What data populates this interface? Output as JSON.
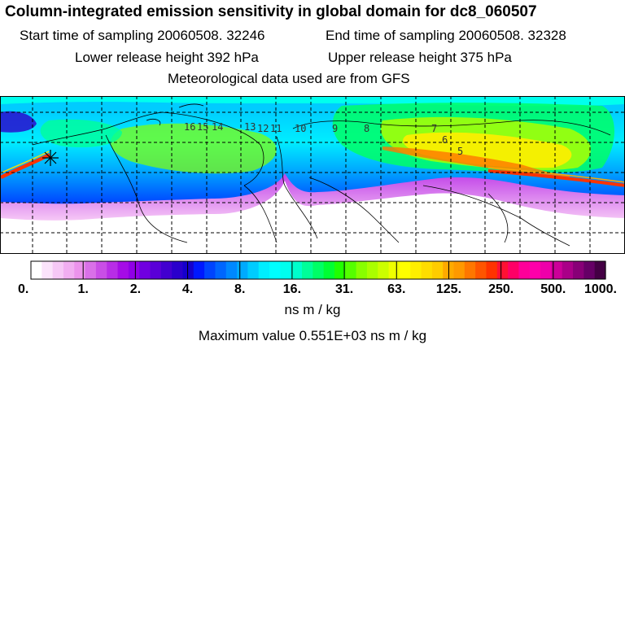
{
  "header": {
    "title": "Column-integrated emission sensitivity in global domain for dc8_060507",
    "start_label": "Start time of sampling 20060508. 32246",
    "end_label": "End time of sampling 20060508. 32328",
    "lower_label": "Lower release height  392 hPa",
    "upper_label": "Upper release height  375 hPa",
    "met_label": "Meteorological data used are from GFS"
  },
  "map": {
    "day_labels": [
      "16",
      "15",
      "14",
      "13",
      "12",
      "11",
      "10",
      "9",
      "8",
      "7",
      "6",
      "5"
    ],
    "colors": {
      "background": "#ffffff",
      "grid": "#000000",
      "track": "#ff2020"
    }
  },
  "colorbar": {
    "tick_labels": [
      "0.",
      "1.",
      "2.",
      "4.",
      "8.",
      "16.",
      "31.",
      "63.",
      "125.",
      "250.",
      "500.",
      "1000."
    ],
    "colors": [
      "#ffffff",
      "#fbe3fb",
      "#f6c8f6",
      "#f1aef1",
      "#ec93ec",
      "#d970e8",
      "#c94ee6",
      "#b82de6",
      "#a50ce6",
      "#9000e6",
      "#7000e0",
      "#5a00d8",
      "#4200d0",
      "#2a00cc",
      "#1500cc",
      "#0018ff",
      "#0044ff",
      "#0066ff",
      "#0088ff",
      "#00aaff",
      "#00ccff",
      "#00eeff",
      "#00ffff",
      "#00ffee",
      "#00ffcc",
      "#00ff99",
      "#00ff66",
      "#00ff33",
      "#20ff00",
      "#55ff00",
      "#88ff00",
      "#aaff00",
      "#ccff00",
      "#eeff00",
      "#ffff00",
      "#ffee00",
      "#ffdd00",
      "#ffcc00",
      "#ffaa00",
      "#ff9900",
      "#ff7700",
      "#ff5500",
      "#ff3300",
      "#ff1133",
      "#ff0066",
      "#ff0099",
      "#ff00aa",
      "#ee00aa",
      "#cc0099",
      "#aa0088",
      "#880077",
      "#660066",
      "#440044"
    ],
    "unit": "ns m / kg",
    "max_label": "Maximum value  0.551E+03 ns m / kg"
  }
}
